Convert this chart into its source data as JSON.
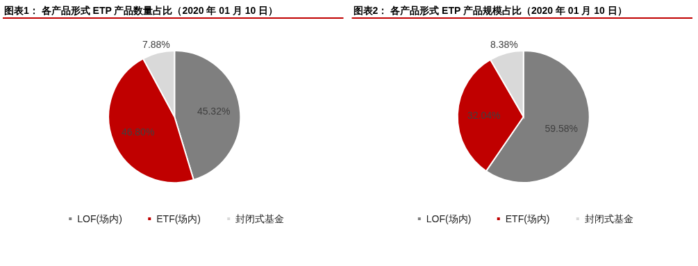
{
  "chart_data": [
    {
      "type": "pie",
      "title": "图表1：  各产品形式 ETP 产品数量占比（2020 年 01 月 10 日）",
      "categories": [
        "LOF(场内)",
        "ETF(场内)",
        "封闭式基金"
      ],
      "values": [
        45.32,
        46.8,
        7.88
      ],
      "colors": [
        "#7f7f7f",
        "#c00000",
        "#d9d9d9"
      ],
      "value_labels": [
        "45.32%",
        "46.80%",
        "7.88%"
      ],
      "legend": "bottom"
    },
    {
      "type": "pie",
      "title": "图表2：  各产品形式 ETP 产品规模占比（2020 年 01 月 10 日）",
      "categories": [
        "LOF(场内)",
        "ETF(场内)",
        "封闭式基金"
      ],
      "values": [
        59.58,
        32.04,
        8.38
      ],
      "colors": [
        "#7f7f7f",
        "#c00000",
        "#d9d9d9"
      ],
      "value_labels": [
        "59.58%",
        "32.04%",
        "8.38%"
      ],
      "legend": "bottom"
    }
  ]
}
